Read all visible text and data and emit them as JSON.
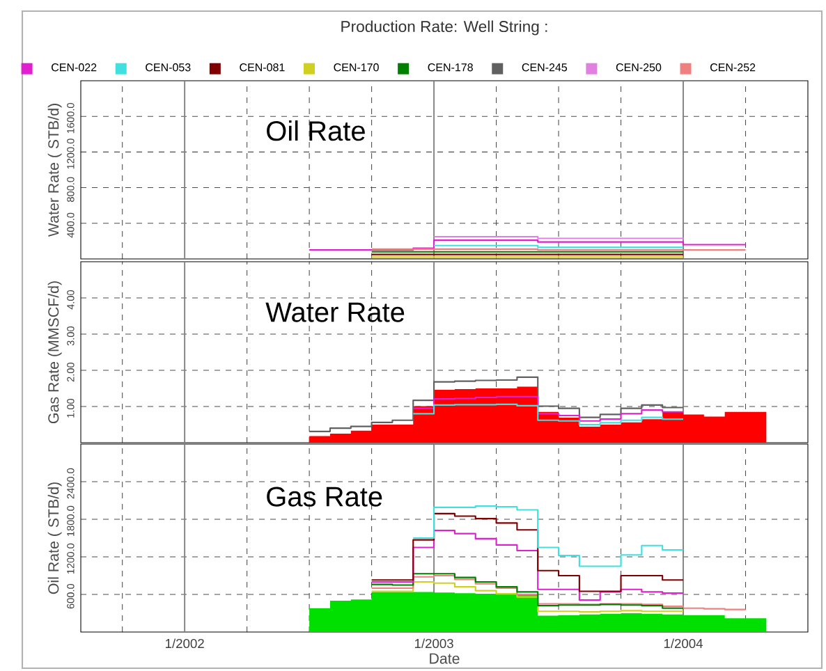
{
  "chart_data": [
    {
      "type": "step",
      "title": "Production Rate: Well String :",
      "ylabel": "Water Rate ( STB/d)",
      "annotations": [
        "Oil Rate"
      ],
      "legend": "top",
      "grid": true,
      "tick_labels": "y",
      "line_style": "solid",
      "xlim": [
        "2001-08",
        "2004-07"
      ],
      "xticks": [
        {
          "value": "2001-10",
          "label": null
        },
        {
          "value": "2002-01",
          "label": null
        },
        {
          "value": "2002-04",
          "label": null
        },
        {
          "value": "2002-07",
          "label": null
        },
        {
          "value": "2002-10",
          "label": null
        },
        {
          "value": "2003-01",
          "label": null
        },
        {
          "value": "2003-04",
          "label": null
        },
        {
          "value": "2003-07",
          "label": null
        },
        {
          "value": "2003-10",
          "label": null
        },
        {
          "value": "2004-01",
          "label": null
        },
        {
          "value": "2004-04",
          "label": null
        }
      ],
      "ylim": [
        0,
        2000
      ],
      "yticks": [
        {
          "value": 400,
          "label": "400.0"
        },
        {
          "value": 800,
          "label": "800.0"
        },
        {
          "value": 1200,
          "label": "1200.0"
        },
        {
          "value": 1600,
          "label": "1600.0"
        }
      ],
      "series": [
        {
          "name": "CEN-022",
          "color": "#e020d0",
          "x": [
            "2002-07",
            "2002-12",
            "2003-01",
            "2003-06",
            "2004-01",
            "2004-04"
          ],
          "values": [
            100,
            120,
            210,
            190,
            160,
            160
          ]
        },
        {
          "name": "CEN-053",
          "color": "#40e0e0",
          "x": [
            "2003-01",
            "2003-06",
            "2004-01"
          ],
          "values": [
            150,
            130,
            130
          ]
        },
        {
          "name": "CEN-081",
          "color": "#800000",
          "x": [
            "2002-10",
            "2003-06",
            "2004-01"
          ],
          "values": [
            50,
            50,
            50
          ]
        },
        {
          "name": "CEN-170",
          "color": "#d0d020",
          "x": [
            "2002-10",
            "2004-01"
          ],
          "values": [
            20,
            20
          ]
        },
        {
          "name": "CEN-178",
          "color": "#008000",
          "x": [
            "2002-10",
            "2004-01"
          ],
          "values": [
            80,
            80
          ]
        },
        {
          "name": "CEN-245",
          "color": "#606060",
          "x": [
            "2002-07",
            "2004-01"
          ],
          "values": [
            0,
            0
          ]
        },
        {
          "name": "CEN-250",
          "color": "#e080e0",
          "x": [
            "2003-01",
            "2003-06",
            "2004-01"
          ],
          "values": [
            250,
            230,
            220
          ]
        },
        {
          "name": "CEN-252",
          "color": "#f08080",
          "x": [
            "2002-10",
            "2003-06",
            "2004-04"
          ],
          "values": [
            110,
            100,
            100
          ]
        }
      ]
    },
    {
      "type": "step",
      "ylabel": "Gas Rate (MMSCF/d)",
      "annotations": [
        "Water Rate"
      ],
      "grid": true,
      "tick_labels": "y",
      "line_style": "solid",
      "xlim": [
        "2001-08",
        "2004-07"
      ],
      "xticks": [
        {
          "value": "2001-10",
          "label": null
        },
        {
          "value": "2002-01",
          "label": null
        },
        {
          "value": "2002-04",
          "label": null
        },
        {
          "value": "2002-07",
          "label": null
        },
        {
          "value": "2002-10",
          "label": null
        },
        {
          "value": "2003-01",
          "label": null
        },
        {
          "value": "2003-04",
          "label": null
        },
        {
          "value": "2003-07",
          "label": null
        },
        {
          "value": "2003-10",
          "label": null
        },
        {
          "value": "2004-01",
          "label": null
        },
        {
          "value": "2004-04",
          "label": null
        }
      ],
      "ylim": [
        0,
        5
      ],
      "yticks": [
        {
          "value": 1,
          "label": "1.00"
        },
        {
          "value": 2,
          "label": "2.00"
        },
        {
          "value": 3,
          "label": "3.00"
        },
        {
          "value": 4,
          "label": "4.00"
        }
      ],
      "series": [
        {
          "type": "area",
          "color": "#ff0000",
          "x": [
            "2002-07",
            "2002-08",
            "2002-09",
            "2002-10",
            "2002-11",
            "2002-12",
            "2003-01",
            "2003-02",
            "2003-03",
            "2003-04",
            "2003-05",
            "2003-06",
            "2003-07",
            "2003-08",
            "2003-09",
            "2003-10",
            "2003-11",
            "2003-12",
            "2004-01",
            "2004-02",
            "2004-03",
            "2004-04",
            "2004-05"
          ],
          "values": [
            0.18,
            0.25,
            0.33,
            0.5,
            0.5,
            1.01,
            1.46,
            1.48,
            1.5,
            1.5,
            1.55,
            0.85,
            0.69,
            0.44,
            0.5,
            0.56,
            0.65,
            0.85,
            0.78,
            0.72,
            0.85,
            0.85,
            0.85
          ]
        },
        {
          "color": "#606060",
          "x": [
            "2002-07",
            "2002-08",
            "2002-09",
            "2002-10",
            "2002-11",
            "2002-12",
            "2003-01",
            "2003-02",
            "2003-03",
            "2003-04",
            "2003-05",
            "2003-06",
            "2003-07",
            "2003-08",
            "2003-09",
            "2003-10",
            "2003-11",
            "2003-12",
            "2004-01"
          ],
          "values": [
            0.31,
            0.4,
            0.45,
            0.56,
            0.62,
            1.17,
            1.68,
            1.7,
            1.72,
            1.73,
            1.81,
            1.01,
            0.95,
            0.7,
            0.78,
            0.95,
            1.04,
            0.97,
            0.97
          ]
        },
        {
          "color": "#e020d0",
          "x": [
            "2002-12",
            "2003-01",
            "2003-02",
            "2003-03",
            "2003-04",
            "2003-05",
            "2003-06",
            "2003-07",
            "2003-08",
            "2003-09",
            "2003-10",
            "2003-11",
            "2003-12",
            "2004-01"
          ],
          "values": [
            0.95,
            1.21,
            1.22,
            1.25,
            1.27,
            1.27,
            0.8,
            0.75,
            0.6,
            0.65,
            0.8,
            0.9,
            0.85,
            0.85
          ]
        },
        {
          "color": "#40e0e0",
          "x": [
            "2002-12",
            "2003-01",
            "2003-02",
            "2003-03",
            "2003-04",
            "2003-05",
            "2003-06",
            "2003-07",
            "2003-08",
            "2003-09",
            "2003-10",
            "2003-11",
            "2003-12",
            "2004-01"
          ],
          "values": [
            0.8,
            1.04,
            1.05,
            1.05,
            1.06,
            1.02,
            0.62,
            0.6,
            0.5,
            0.55,
            0.62,
            0.7,
            0.65,
            0.65
          ]
        }
      ]
    },
    {
      "type": "step",
      "xlabel": "Date",
      "ylabel": "Oil Rate ( STB/d)",
      "annotations": [
        "Gas Rate"
      ],
      "grid": true,
      "line_style": "solid",
      "xlim": [
        "2001-08",
        "2004-07"
      ],
      "xticks": [
        {
          "value": "2001-10",
          "label": null
        },
        {
          "value": "2002-01",
          "label": "1/2002"
        },
        {
          "value": "2002-04",
          "label": null
        },
        {
          "value": "2002-07",
          "label": null
        },
        {
          "value": "2002-10",
          "label": null
        },
        {
          "value": "2003-01",
          "label": "1/2003"
        },
        {
          "value": "2003-04",
          "label": null
        },
        {
          "value": "2003-07",
          "label": null
        },
        {
          "value": "2003-10",
          "label": null
        },
        {
          "value": "2004-01",
          "label": "1/2004"
        },
        {
          "value": "2004-04",
          "label": null
        }
      ],
      "ylim": [
        0,
        3000
      ],
      "yticks": [
        {
          "value": 600,
          "label": "600.0"
        },
        {
          "value": 1200,
          "label": "1200.0"
        },
        {
          "value": 1800,
          "label": "1800.0"
        },
        {
          "value": 2400,
          "label": "2400.0"
        }
      ],
      "series": [
        {
          "type": "area",
          "color": "#00e000",
          "x": [
            "2002-07",
            "2002-08",
            "2002-09",
            "2002-10",
            "2002-11",
            "2002-12",
            "2003-01",
            "2003-02",
            "2003-03",
            "2003-04",
            "2003-05",
            "2003-06",
            "2003-07",
            "2003-08",
            "2003-09",
            "2003-10",
            "2003-11",
            "2003-12",
            "2004-01",
            "2004-02",
            "2004-03",
            "2004-04",
            "2004-05"
          ],
          "values": [
            380,
            500,
            520,
            640,
            640,
            640,
            630,
            620,
            610,
            600,
            590,
            260,
            270,
            280,
            290,
            300,
            290,
            280,
            270,
            270,
            220,
            220,
            220
          ]
        },
        {
          "color": "#d0d020",
          "x": [
            "2002-10",
            "2002-11",
            "2002-12",
            "2003-01",
            "2003-02",
            "2003-03",
            "2003-04",
            "2003-05",
            "2003-06",
            "2003-07",
            "2003-08",
            "2003-09",
            "2003-10",
            "2003-11",
            "2003-12",
            "2004-01"
          ],
          "values": [
            650,
            650,
            800,
            780,
            720,
            660,
            610,
            560,
            330,
            330,
            320,
            330,
            340,
            330,
            330,
            330
          ]
        },
        {
          "color": "#f08080",
          "x": [
            "2002-10",
            "2002-11",
            "2002-12",
            "2003-01",
            "2003-02",
            "2003-03",
            "2003-04",
            "2003-05",
            "2003-06",
            "2003-07",
            "2003-08",
            "2003-09",
            "2003-10",
            "2003-11",
            "2003-12",
            "2004-01",
            "2004-02",
            "2004-03",
            "2004-04"
          ],
          "values": [
            700,
            700,
            880,
            900,
            840,
            770,
            700,
            600,
            450,
            450,
            440,
            450,
            450,
            440,
            410,
            380,
            370,
            360,
            360
          ]
        },
        {
          "color": "#008000",
          "x": [
            "2002-10",
            "2002-11",
            "2002-12",
            "2003-01",
            "2003-02",
            "2003-03",
            "2003-04",
            "2003-05",
            "2003-06",
            "2003-07",
            "2003-08",
            "2003-09",
            "2003-10",
            "2003-11",
            "2003-12",
            "2004-01"
          ],
          "values": [
            760,
            750,
            930,
            930,
            870,
            800,
            720,
            640,
            420,
            430,
            430,
            440,
            430,
            420,
            380,
            380
          ]
        },
        {
          "color": "#e020d0",
          "x": [
            "2002-10",
            "2002-11",
            "2002-12",
            "2003-01",
            "2003-02",
            "2003-03",
            "2003-04",
            "2003-05",
            "2003-06",
            "2003-07",
            "2003-08",
            "2003-09",
            "2003-10",
            "2003-11",
            "2003-12",
            "2004-01"
          ],
          "values": [
            800,
            800,
            1350,
            1620,
            1570,
            1490,
            1390,
            1300,
            680,
            680,
            510,
            640,
            680,
            640,
            620,
            620
          ]
        },
        {
          "color": "#800000",
          "x": [
            "2002-10",
            "2002-11",
            "2002-12",
            "2003-01",
            "2003-02",
            "2003-03",
            "2003-04",
            "2003-05",
            "2003-06",
            "2003-07",
            "2003-08",
            "2003-09",
            "2003-10",
            "2003-11",
            "2003-12",
            "2004-01"
          ],
          "values": [
            830,
            830,
            1470,
            1890,
            1850,
            1810,
            1740,
            1630,
            980,
            900,
            650,
            650,
            900,
            900,
            830,
            830
          ]
        },
        {
          "color": "#40e0e0",
          "x": [
            "2002-12",
            "2003-01",
            "2003-02",
            "2003-03",
            "2003-04",
            "2003-05",
            "2003-06",
            "2003-07",
            "2003-08",
            "2003-09",
            "2003-10",
            "2003-11",
            "2003-12",
            "2004-01"
          ],
          "values": [
            1500,
            1990,
            1990,
            2010,
            2000,
            1950,
            1350,
            1220,
            1050,
            1050,
            1230,
            1380,
            1310,
            1310
          ]
        }
      ]
    }
  ]
}
